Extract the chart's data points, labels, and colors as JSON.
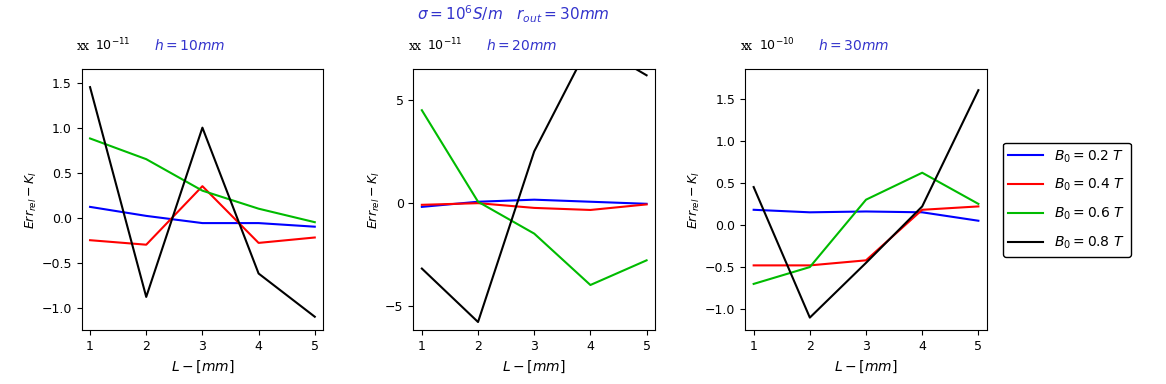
{
  "suptitle": "$\\sigma = 10^6 S/m \\quad r_{out} = 30mm$",
  "title_color": "#3333cc",
  "x": [
    1,
    2,
    3,
    4,
    5
  ],
  "subplot1": {
    "title": "$h = 10mm$",
    "scale_label": "x $10^{-11}$",
    "ylim": [
      -1.25,
      1.65
    ],
    "yticks": [
      -1.0,
      -0.5,
      0.0,
      0.5,
      1.0,
      1.5
    ],
    "blue": [
      0.12,
      0.02,
      -0.06,
      -0.06,
      -0.1
    ],
    "red": [
      -0.25,
      -0.3,
      0.35,
      -0.28,
      -0.22
    ],
    "green": [
      0.88,
      0.65,
      0.3,
      0.1,
      -0.05
    ],
    "black": [
      1.45,
      -0.88,
      1.0,
      -0.62,
      -1.1
    ]
  },
  "subplot2": {
    "title": "$h = 20mm$",
    "scale_label": "x $10^{-11}$",
    "ylim": [
      -6.2,
      6.5
    ],
    "yticks": [
      -5,
      0,
      5
    ],
    "blue": [
      -0.2,
      0.05,
      0.15,
      0.05,
      -0.05
    ],
    "red": [
      -0.1,
      -0.02,
      -0.25,
      -0.35,
      -0.08
    ],
    "green": [
      4.5,
      0.05,
      -1.5,
      -4.0,
      -2.8
    ],
    "black": [
      -3.2,
      -5.8,
      2.5,
      7.8,
      6.2
    ]
  },
  "subplot3": {
    "title": "$h = 30mm$",
    "scale_label": "x $10^{-10}$",
    "ylim": [
      -1.25,
      1.85
    ],
    "yticks": [
      -1.0,
      -0.5,
      0.0,
      0.5,
      1.0,
      1.5
    ],
    "blue": [
      0.18,
      0.15,
      0.16,
      0.15,
      0.05
    ],
    "red": [
      -0.48,
      -0.48,
      -0.42,
      0.18,
      0.22
    ],
    "green": [
      -0.7,
      -0.5,
      0.3,
      0.62,
      0.25
    ],
    "black": [
      0.45,
      -1.1,
      -0.45,
      0.22,
      1.6
    ]
  },
  "legend": {
    "blue_label": "$B_0 = 0.2\\ T$",
    "red_label": "$B_0 = 0.4\\ T$",
    "green_label": "$B_0 = 0.6\\ T$",
    "black_label": "$B_0 = 0.8\\ T$"
  },
  "colors": {
    "blue": "#0000ff",
    "red": "#ff0000",
    "green": "#00bb00",
    "black": "#000000"
  },
  "xlabel": "$L - [mm]$",
  "ylabel": "$Err_{rel} - K_I$",
  "xticks": [
    1,
    2,
    3,
    4,
    5
  ],
  "linewidth": 1.5
}
